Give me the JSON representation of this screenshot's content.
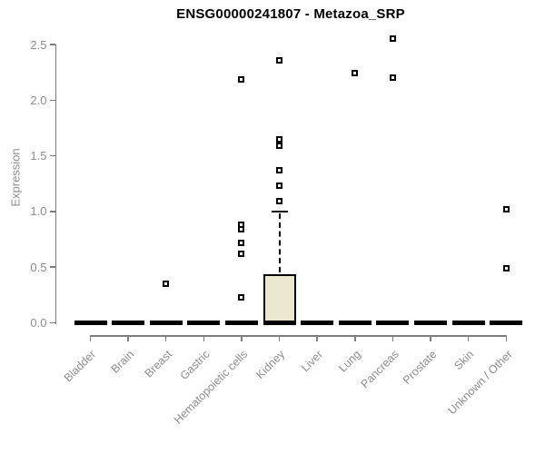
{
  "chart_data": {
    "type": "boxplot",
    "title": "ENSG00000241807 - Metazoa_SRP",
    "ylabel": "Expression",
    "xlabel": "",
    "ylim": [
      0,
      2.5
    ],
    "yticks": [
      "0.0",
      "0.5",
      "1.0",
      "1.5",
      "2.0",
      "2.5"
    ],
    "grid": false,
    "legend": "none",
    "categories": [
      "Bladder",
      "Brain",
      "Breast",
      "Gastric",
      "Hematopoietic cells",
      "Kidney",
      "Liver",
      "Lung",
      "Pancreas",
      "Prostate",
      "Skin",
      "Unknown / Other"
    ],
    "boxes": [
      {
        "category": "Bladder",
        "q1": 0,
        "median": 0,
        "q3": 0,
        "whisker_low": 0,
        "whisker_high": 0,
        "outliers": []
      },
      {
        "category": "Brain",
        "q1": 0,
        "median": 0,
        "q3": 0,
        "whisker_low": 0,
        "whisker_high": 0,
        "outliers": []
      },
      {
        "category": "Breast",
        "q1": 0,
        "median": 0,
        "q3": 0,
        "whisker_low": 0,
        "whisker_high": 0,
        "outliers": [
          0.35
        ]
      },
      {
        "category": "Gastric",
        "q1": 0,
        "median": 0,
        "q3": 0,
        "whisker_low": 0,
        "whisker_high": 0,
        "outliers": []
      },
      {
        "category": "Hematopoietic cells",
        "q1": 0,
        "median": 0,
        "q3": 0,
        "whisker_low": 0,
        "whisker_high": 0,
        "outliers": [
          2.19,
          0.88,
          0.84,
          0.72,
          0.62,
          0.23
        ]
      },
      {
        "category": "Kidney",
        "q1": 0,
        "median": 0,
        "q3": 0.44,
        "whisker_low": 0,
        "whisker_high": 1.0,
        "outliers": [
          2.36,
          1.65,
          1.59,
          1.37,
          1.23,
          1.09
        ]
      },
      {
        "category": "Liver",
        "q1": 0,
        "median": 0,
        "q3": 0,
        "whisker_low": 0,
        "whisker_high": 0,
        "outliers": []
      },
      {
        "category": "Lung",
        "q1": 0,
        "median": 0,
        "q3": 0,
        "whisker_low": 0,
        "whisker_high": 0,
        "outliers": [
          2.24
        ]
      },
      {
        "category": "Pancreas",
        "q1": 0,
        "median": 0,
        "q3": 0,
        "whisker_low": 0,
        "whisker_high": 0,
        "outliers": [
          2.55,
          2.2
        ]
      },
      {
        "category": "Prostate",
        "q1": 0,
        "median": 0,
        "q3": 0,
        "whisker_low": 0,
        "whisker_high": 0,
        "outliers": []
      },
      {
        "category": "Skin",
        "q1": 0,
        "median": 0,
        "q3": 0,
        "whisker_low": 0,
        "whisker_high": 0,
        "outliers": []
      },
      {
        "category": "Unknown / Other",
        "q1": 0,
        "median": 0,
        "q3": 0,
        "whisker_low": 0,
        "whisker_high": 0,
        "outliers": [
          1.02,
          0.49
        ]
      }
    ],
    "colors": {
      "box_fill": "#ece8cf",
      "box_border": "#000000",
      "median": "#000000",
      "axis": "#7d7d7d",
      "tick_label": "#8c8c8c",
      "title": "#000000"
    }
  }
}
